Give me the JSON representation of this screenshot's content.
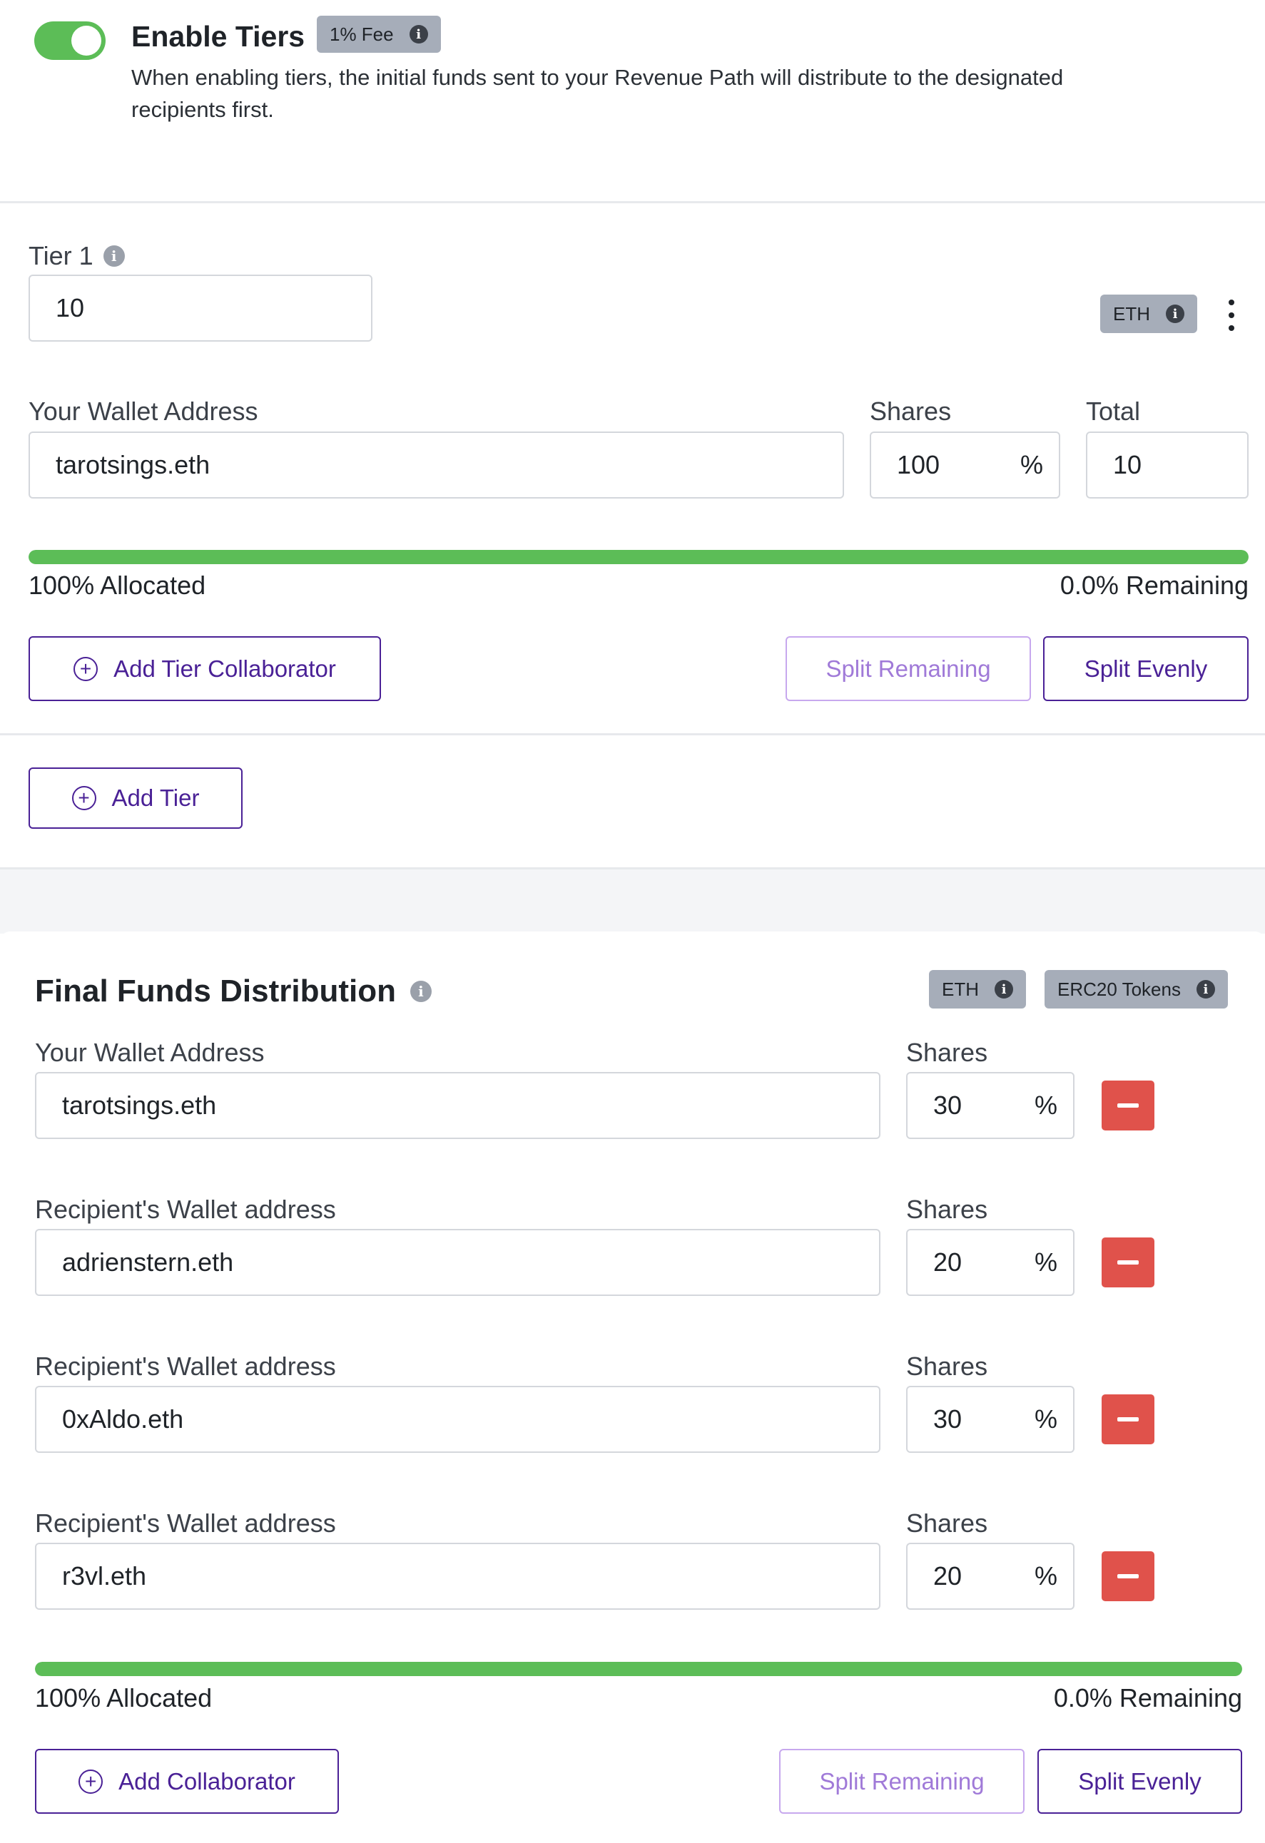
{
  "tiers_header": {
    "title": "Enable Tiers",
    "fee_badge": "1% Fee",
    "description_line1": "When enabling tiers, the initial funds sent to your Revenue Path will distribute to the designated",
    "description_line2": "recipients first.",
    "toggle_on": true
  },
  "tier1": {
    "label": "Tier 1",
    "limit_value": "10",
    "currency_badge": "ETH",
    "wallet_label": "Your Wallet Address",
    "shares_label": "Shares",
    "total_label": "Total",
    "wallet_value": "tarotsings.eth",
    "shares_value": "100",
    "percent_sign": "%",
    "total_value": "10",
    "allocated_fraction": 1.0,
    "allocated_text": "100% Allocated",
    "remaining_text": "0.0% Remaining",
    "add_collaborator_label": "Add Tier Collaborator",
    "split_remaining_label": "Split Remaining",
    "split_evenly_label": "Split Evenly"
  },
  "add_tier_label": "Add Tier",
  "final": {
    "title": "Final Funds Distribution",
    "badge_eth": "ETH",
    "badge_erc20": "ERC20 Tokens",
    "shares_label": "Shares",
    "percent_sign": "%",
    "rows": [
      {
        "label": "Your Wallet Address",
        "wallet": "tarotsings.eth",
        "shares": "30"
      },
      {
        "label": "Recipient's Wallet address",
        "wallet": "adrienstern.eth",
        "shares": "20"
      },
      {
        "label": "Recipient's Wallet address",
        "wallet": "0xAldo.eth",
        "shares": "30"
      },
      {
        "label": "Recipient's Wallet address",
        "wallet": "r3vl.eth",
        "shares": "20"
      }
    ],
    "allocated_fraction": 1.0,
    "allocated_text": "100% Allocated",
    "remaining_text": "0.0% Remaining",
    "add_collaborator_label": "Add Collaborator",
    "split_remaining_label": "Split Remaining",
    "split_evenly_label": "Split Evenly"
  },
  "colors": {
    "toggle": "#5cbd57",
    "progress": "#5cbd57",
    "primary": "#4a2196",
    "danger": "#e0524b",
    "badge": "#a6adb9"
  }
}
